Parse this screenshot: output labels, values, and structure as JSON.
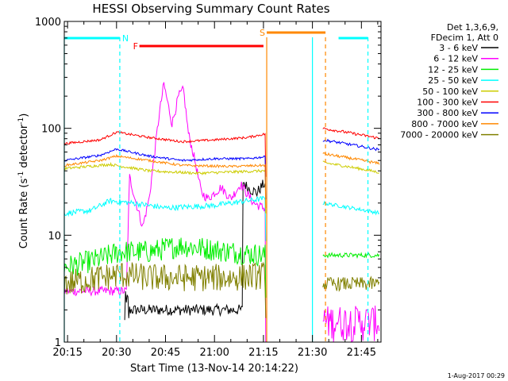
{
  "chart_data": {
    "type": "line",
    "title": "HESSI Observing Summary Count Rates",
    "xlabel": "Start Time (13-Nov-14 20:14:22)",
    "ylabel_main": "Count Rate (s",
    "ylabel_sup1": "-1",
    "ylabel_mid": " detector",
    "ylabel_sup2": "-1",
    "ylabel_end": ")",
    "y_scale": "log",
    "ylim": [
      1,
      1000
    ],
    "xlim": [
      "20:14:00",
      "21:51:00"
    ],
    "x_ticks": [
      "20:15",
      "20:30",
      "20:45",
      "21:00",
      "21:15",
      "21:30",
      "21:45"
    ],
    "y_ticks": [
      "1",
      "10",
      "100",
      "1000"
    ],
    "legend_header": [
      "Det 1,3,6,9,",
      "FDecim 1, Att 0"
    ],
    "legend_position": "right",
    "series": [
      {
        "name": "3 - 6 keV",
        "color": "#000000"
      },
      {
        "name": "6 - 12 keV",
        "color": "#ff00ff"
      },
      {
        "name": "12 - 25 keV",
        "color": "#00ee00"
      },
      {
        "name": "25 - 50 keV",
        "color": "#00ffff"
      },
      {
        "name": "50 - 100 keV",
        "color": "#cccc00"
      },
      {
        "name": "100 - 300 keV",
        "color": "#ff0000"
      },
      {
        "name": "300 - 800 keV",
        "color": "#0000ff"
      },
      {
        "name": "800 - 7000 keV",
        "color": "#ff8800"
      },
      {
        "name": "7000 - 20000 keV",
        "color": "#808000"
      }
    ],
    "data_gaps": [
      [
        "21:16",
        "21:33"
      ]
    ],
    "annotations": [
      {
        "label": "N",
        "color": "#00ffff",
        "intervals": [
          [
            "20:14",
            "20:31"
          ],
          [
            "21:38",
            "21:47"
          ]
        ]
      },
      {
        "label": "F",
        "color": "#ff0000",
        "intervals": [
          [
            "20:37",
            "21:15"
          ]
        ]
      },
      {
        "label": "S",
        "color": "#ff8800",
        "intervals": [
          [
            "21:16",
            "21:34"
          ]
        ]
      }
    ],
    "vertical_markers": [
      {
        "time": "20:14",
        "color": "#00ffff",
        "style": "solid"
      },
      {
        "time": "20:31",
        "color": "#00ffff",
        "style": "dashed"
      },
      {
        "time": "21:16",
        "color": "#ff8800",
        "style": "solid"
      },
      {
        "time": "21:30",
        "color": "#00ffff",
        "style": "solid"
      },
      {
        "time": "21:34",
        "color": "#ff8800",
        "style": "dashed"
      },
      {
        "time": "21:47",
        "color": "#00ffff",
        "style": "dashed"
      }
    ]
  },
  "footer_stamp": "1-Aug-2017 00:29"
}
